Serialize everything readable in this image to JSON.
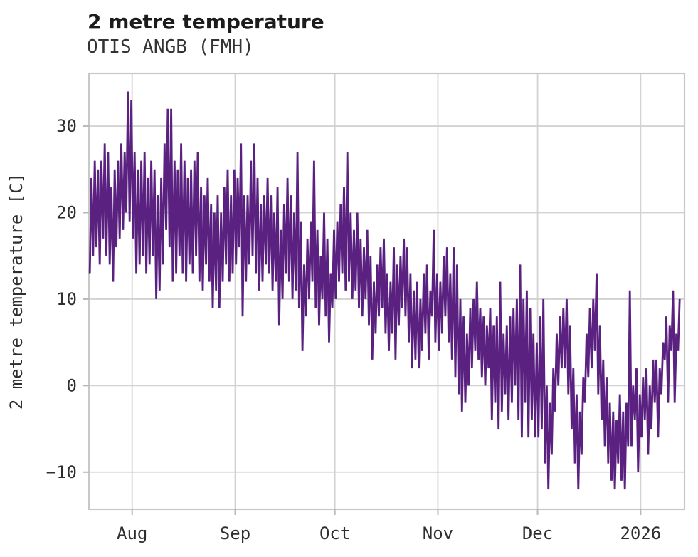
{
  "header": {
    "title": "2 metre temperature",
    "subtitle": "OTIS ANGB (FMH)"
  },
  "colors": {
    "line": "#5a2181",
    "grid": "#d2d2d2",
    "spine": "#c8c8c8",
    "tick_mark": "#b8b8b8",
    "tick_text": "#2e2e2e",
    "title_text": "#1c1c1c",
    "background": "#ffffff"
  },
  "chart_data": {
    "type": "line",
    "title": "2 metre temperature",
    "subtitle": "OTIS ANGB (FMH)",
    "xlabel": "",
    "ylabel": "2 metre temperature [C]",
    "legend": "none",
    "grid": true,
    "line_color": "#5a2181",
    "ylim": [
      -14.3,
      36.1
    ],
    "yticks": [
      {
        "value": 30,
        "label": "30"
      },
      {
        "value": 20,
        "label": "20"
      },
      {
        "value": 10,
        "label": "10"
      },
      {
        "value": 0,
        "label": "0"
      },
      {
        "value": -10,
        "label": "−10"
      }
    ],
    "x_unit": "days",
    "xlim_days": [
      0,
      179.2
    ],
    "xticks": [
      {
        "day": 13,
        "label": "Aug"
      },
      {
        "day": 44,
        "label": "Sep"
      },
      {
        "day": 74,
        "label": "Oct"
      },
      {
        "day": 105,
        "label": "Nov"
      },
      {
        "day": 135,
        "label": "Dec"
      },
      {
        "day": 166,
        "label": "2026"
      }
    ],
    "samples_per_day": 2,
    "series_name": "2 metre temperature",
    "daily_min_max": [
      [
        13,
        24
      ],
      [
        15,
        26
      ],
      [
        16,
        25
      ],
      [
        14,
        26
      ],
      [
        17,
        28
      ],
      [
        15,
        27
      ],
      [
        14,
        23
      ],
      [
        12,
        25
      ],
      [
        16,
        26
      ],
      [
        17,
        28
      ],
      [
        18,
        27
      ],
      [
        20,
        34
      ],
      [
        19,
        33
      ],
      [
        17,
        27
      ],
      [
        13,
        25
      ],
      [
        14,
        26
      ],
      [
        15,
        27
      ],
      [
        13,
        24
      ],
      [
        14,
        26
      ],
      [
        15,
        25
      ],
      [
        10,
        22
      ],
      [
        11,
        24
      ],
      [
        14,
        28
      ],
      [
        18,
        32
      ],
      [
        16,
        32
      ],
      [
        12,
        26
      ],
      [
        13,
        25
      ],
      [
        15,
        28
      ],
      [
        13,
        26
      ],
      [
        12,
        24
      ],
      [
        14,
        25
      ],
      [
        13,
        26
      ],
      [
        15,
        27
      ],
      [
        12,
        23
      ],
      [
        11,
        22
      ],
      [
        14,
        24
      ],
      [
        12,
        21
      ],
      [
        9,
        20
      ],
      [
        11,
        22
      ],
      [
        9,
        20
      ],
      [
        12,
        23
      ],
      [
        14,
        25
      ],
      [
        12,
        22
      ],
      [
        13,
        25
      ],
      [
        14,
        24
      ],
      [
        16,
        28
      ],
      [
        8,
        22
      ],
      [
        12,
        22
      ],
      [
        14,
        26
      ],
      [
        15,
        28
      ],
      [
        13,
        24
      ],
      [
        11,
        21
      ],
      [
        12,
        22
      ],
      [
        14,
        24
      ],
      [
        13,
        22
      ],
      [
        11,
        20
      ],
      [
        12,
        23
      ],
      [
        7,
        18
      ],
      [
        10,
        21
      ],
      [
        13,
        24
      ],
      [
        12,
        22
      ],
      [
        10,
        20
      ],
      [
        11,
        27
      ],
      [
        9,
        19
      ],
      [
        4,
        14
      ],
      [
        8,
        17
      ],
      [
        10,
        19
      ],
      [
        12,
        26
      ],
      [
        9,
        18
      ],
      [
        7,
        15
      ],
      [
        10,
        20
      ],
      [
        8,
        17
      ],
      [
        5,
        13
      ],
      [
        9,
        18
      ],
      [
        10,
        19
      ],
      [
        12,
        21
      ],
      [
        13,
        23
      ],
      [
        11,
        27
      ],
      [
        12,
        20
      ],
      [
        10,
        18
      ],
      [
        11,
        20
      ],
      [
        9,
        17
      ],
      [
        8,
        16
      ],
      [
        10,
        18
      ],
      [
        7,
        15
      ],
      [
        3,
        12
      ],
      [
        6,
        14
      ],
      [
        8,
        16
      ],
      [
        9,
        17
      ],
      [
        6,
        13
      ],
      [
        4,
        12
      ],
      [
        6,
        16
      ],
      [
        3,
        14
      ],
      [
        7,
        15
      ],
      [
        9,
        17
      ],
      [
        8,
        16
      ],
      [
        5,
        13
      ],
      [
        2,
        11
      ],
      [
        3,
        12
      ],
      [
        2,
        10
      ],
      [
        4,
        13
      ],
      [
        6,
        14
      ],
      [
        3,
        11
      ],
      [
        8,
        18
      ],
      [
        5,
        13
      ],
      [
        4,
        12
      ],
      [
        6,
        15
      ],
      [
        8,
        16
      ],
      [
        5,
        13
      ],
      [
        3,
        16
      ],
      [
        1,
        14
      ],
      [
        -1,
        10
      ],
      [
        -3,
        8
      ],
      [
        -2,
        6
      ],
      [
        0,
        9
      ],
      [
        2,
        10
      ],
      [
        4,
        12
      ],
      [
        3,
        9
      ],
      [
        1,
        8
      ],
      [
        0,
        7
      ],
      [
        2,
        9
      ],
      [
        -4,
        7
      ],
      [
        -2,
        8
      ],
      [
        -5,
        12
      ],
      [
        -3,
        6
      ],
      [
        -1,
        7
      ],
      [
        -4,
        8
      ],
      [
        -2,
        9
      ],
      [
        0,
        10
      ],
      [
        -4,
        14
      ],
      [
        -6,
        10
      ],
      [
        -2,
        11
      ],
      [
        -6,
        9
      ],
      [
        -4,
        6
      ],
      [
        -6,
        5
      ],
      [
        -6,
        8
      ],
      [
        -5,
        10
      ],
      [
        -9,
        0
      ],
      [
        -12,
        -2
      ],
      [
        -8,
        2
      ],
      [
        -3,
        6
      ],
      [
        0,
        8
      ],
      [
        2,
        9
      ],
      [
        2,
        10
      ],
      [
        -1,
        7
      ],
      [
        -5,
        2
      ],
      [
        -9,
        -1
      ],
      [
        -12,
        -3
      ],
      [
        -8,
        1
      ],
      [
        -2,
        6
      ],
      [
        1,
        9
      ],
      [
        2,
        10
      ],
      [
        4,
        13
      ],
      [
        -1,
        7
      ],
      [
        -4,
        3
      ],
      [
        -7,
        1
      ],
      [
        -9,
        -2
      ],
      [
        -11,
        -3
      ],
      [
        -12,
        -4
      ],
      [
        -9,
        -1
      ],
      [
        -11,
        -3
      ],
      [
        -12,
        -2
      ],
      [
        -7,
        11
      ],
      [
        -7,
        0
      ],
      [
        -4,
        2
      ],
      [
        -10,
        -1
      ],
      [
        -6,
        1
      ],
      [
        -4,
        2
      ],
      [
        -8,
        0
      ],
      [
        -5,
        3
      ],
      [
        -2,
        3
      ],
      [
        -6,
        2
      ],
      [
        -1,
        5
      ],
      [
        3,
        8
      ],
      [
        -2,
        7
      ],
      [
        4,
        11
      ],
      [
        -2,
        6
      ],
      [
        4,
        10
      ]
    ]
  }
}
